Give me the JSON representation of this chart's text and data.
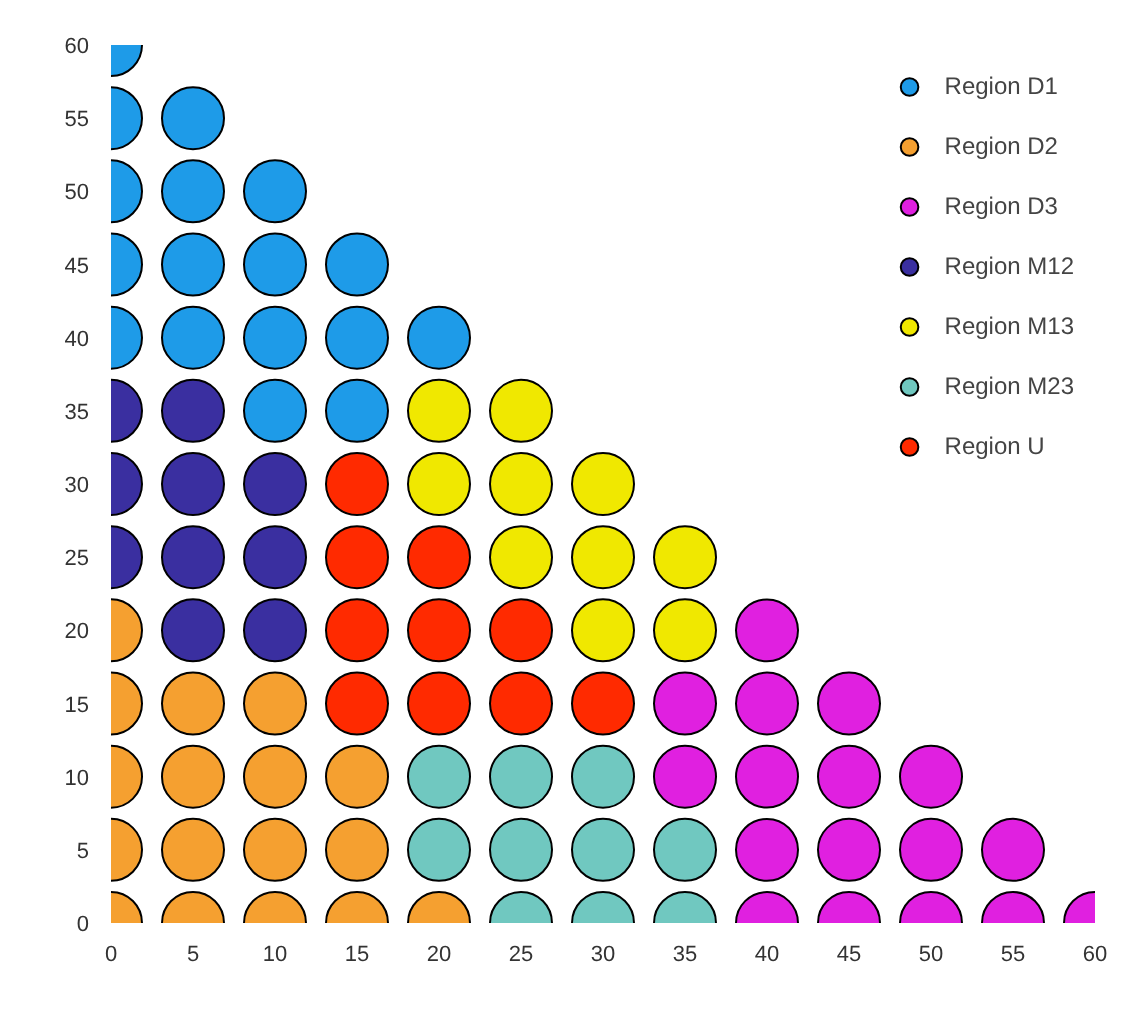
{
  "chart_data": {
    "type": "scatter",
    "marker": "circle",
    "legend": "top right",
    "grid": false,
    "xlim": [
      0,
      60
    ],
    "ylim": [
      0,
      60
    ],
    "xticks": [
      0,
      5,
      10,
      15,
      20,
      25,
      30,
      35,
      40,
      45,
      50,
      55,
      60
    ],
    "yticks": [
      0,
      5,
      10,
      15,
      20,
      25,
      30,
      35,
      40,
      45,
      50,
      55,
      60
    ],
    "series": [
      {
        "name": "Region D1",
        "color": "#1e9be8",
        "x": [
          0,
          0,
          5,
          0,
          5,
          10,
          0,
          5,
          10,
          15,
          0,
          5,
          10,
          15,
          20,
          10,
          15
        ],
        "values": [
          60,
          55,
          55,
          50,
          50,
          50,
          45,
          45,
          45,
          45,
          40,
          40,
          40,
          40,
          40,
          35,
          35
        ]
      },
      {
        "name": "Region D2",
        "color": "#f5a030",
        "x": [
          0,
          0,
          5,
          10,
          0,
          5,
          10,
          15,
          0,
          5,
          10,
          15,
          0,
          5,
          10,
          15,
          20
        ],
        "values": [
          20,
          15,
          15,
          15,
          10,
          10,
          10,
          10,
          5,
          5,
          5,
          5,
          0,
          0,
          0,
          0,
          0
        ]
      },
      {
        "name": "Region D3",
        "color": "#e020e0",
        "x": [
          40,
          35,
          40,
          45,
          35,
          40,
          45,
          50,
          40,
          45,
          50,
          55,
          40,
          45,
          50,
          55,
          60
        ],
        "values": [
          20,
          15,
          15,
          15,
          10,
          10,
          10,
          10,
          5,
          5,
          5,
          5,
          0,
          0,
          0,
          0,
          0
        ]
      },
      {
        "name": "Region M12",
        "color": "#3a2fa0",
        "x": [
          0,
          5,
          0,
          5,
          10,
          0,
          5,
          10,
          5,
          10
        ],
        "values": [
          35,
          35,
          30,
          30,
          30,
          25,
          25,
          25,
          20,
          20
        ]
      },
      {
        "name": "Region M13",
        "color": "#f0e800",
        "x": [
          20,
          25,
          20,
          25,
          30,
          25,
          30,
          35,
          30,
          35
        ],
        "values": [
          35,
          35,
          30,
          30,
          30,
          25,
          25,
          25,
          20,
          20
        ]
      },
      {
        "name": "Region M23",
        "color": "#70c8c0",
        "x": [
          20,
          25,
          30,
          20,
          25,
          30,
          35,
          25,
          30,
          35
        ],
        "values": [
          10,
          10,
          10,
          5,
          5,
          5,
          5,
          0,
          0,
          0
        ]
      },
      {
        "name": "Region U",
        "color": "#ff2a00",
        "x": [
          15,
          15,
          20,
          15,
          20,
          25,
          15,
          20,
          25,
          30
        ],
        "values": [
          30,
          25,
          25,
          20,
          20,
          20,
          15,
          15,
          15,
          15
        ]
      }
    ]
  }
}
